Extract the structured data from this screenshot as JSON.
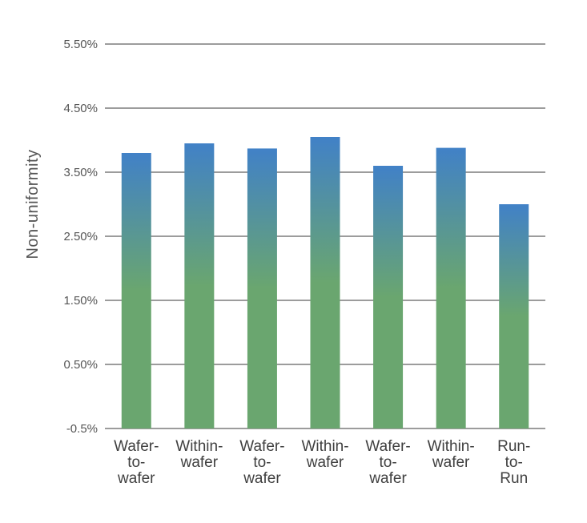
{
  "chart_data": {
    "type": "bar",
    "ylabel": "Non-uniformity",
    "xlabel": "",
    "title": "",
    "categories": [
      [
        "Wafer-",
        "to-",
        "wafer"
      ],
      [
        "Within-",
        "wafer"
      ],
      [
        "Wafer-",
        "to-",
        "wafer"
      ],
      [
        "Within-",
        "wafer"
      ],
      [
        "Wafer-",
        "to-",
        "wafer"
      ],
      [
        "Within-",
        "wafer"
      ],
      [
        "Run-",
        "to-",
        "Run"
      ]
    ],
    "values": [
      3.8,
      3.95,
      3.87,
      4.05,
      3.6,
      3.88,
      3.0
    ],
    "value_unit": "%",
    "yticks": [
      "-0.5%",
      "0.50%",
      "1.50%",
      "2.50%",
      "3.50%",
      "4.50%",
      "5.50%"
    ],
    "ytick_values": [
      -0.5,
      0.5,
      1.5,
      2.5,
      3.5,
      4.5,
      5.5
    ],
    "ylim": [
      -0.5,
      5.5
    ],
    "grid": true,
    "legend": "none",
    "colors": {
      "bar_top": "#4181c7",
      "bar_bottom": "#6aa66f",
      "gridline": "#3a3a3a"
    }
  }
}
